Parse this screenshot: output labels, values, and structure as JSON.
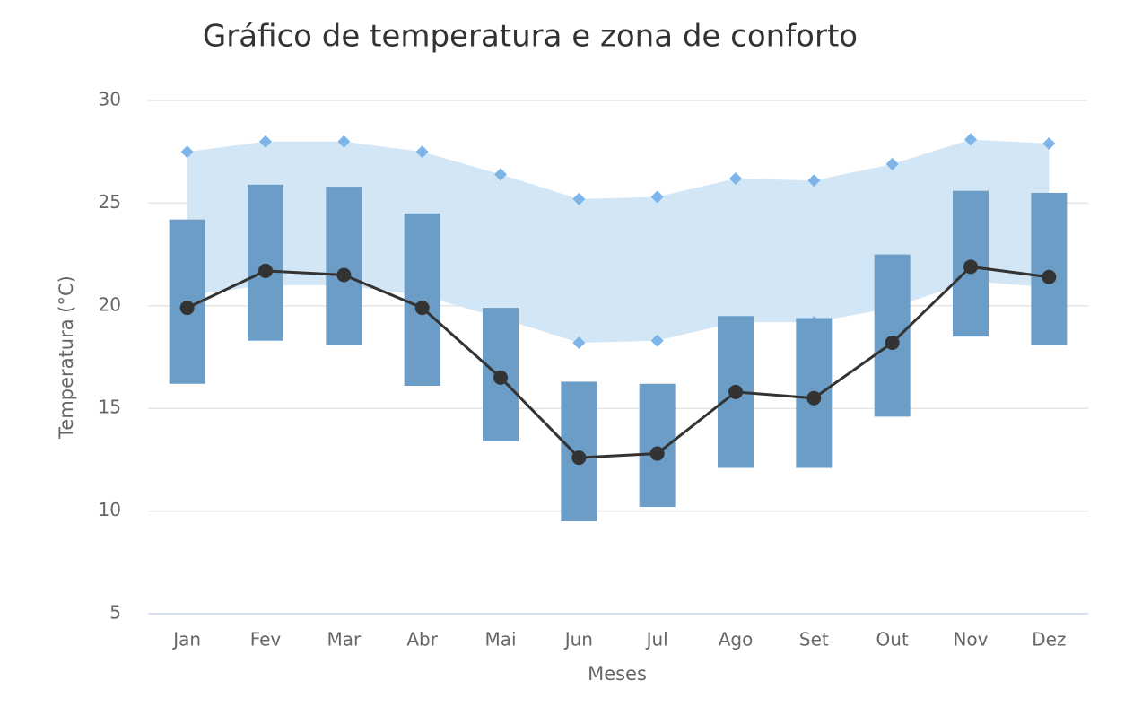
{
  "chart_data": {
    "type": "combo",
    "title": "Gráfico de temperatura e zona de conforto",
    "x_label": "Meses",
    "y_label": "Temperatura (°C)",
    "categories": [
      "Jan",
      "Fev",
      "Mar",
      "Abr",
      "Mai",
      "Jun",
      "Jul",
      "Ago",
      "Set",
      "Out",
      "Nov",
      "Dez"
    ],
    "ylim": [
      5,
      30
    ],
    "yticks": [
      5,
      10,
      15,
      20,
      25,
      30
    ],
    "grid": true,
    "series": [
      {
        "type": "arearange",
        "color": "#d3e6f6",
        "marker_color": "#7db5e9",
        "high": [
          27.5,
          28.0,
          28.0,
          27.5,
          26.4,
          25.2,
          25.3,
          26.2,
          26.1,
          26.9,
          28.1,
          27.9
        ],
        "low": [
          20.5,
          21.0,
          21.0,
          20.5,
          19.4,
          18.2,
          18.3,
          19.2,
          19.2,
          19.9,
          21.2,
          20.9
        ]
      },
      {
        "type": "columnrange",
        "color": "#6b9dc7",
        "high": [
          24.2,
          25.9,
          25.8,
          24.5,
          19.9,
          16.3,
          16.2,
          19.5,
          19.4,
          22.5,
          25.6,
          25.5
        ],
        "low": [
          16.2,
          18.3,
          18.1,
          16.1,
          13.4,
          9.5,
          10.2,
          12.1,
          12.1,
          14.6,
          18.5,
          18.1
        ]
      },
      {
        "type": "line",
        "color": "#333333",
        "values": [
          19.9,
          21.7,
          21.5,
          19.9,
          16.5,
          12.6,
          12.8,
          15.8,
          15.5,
          18.2,
          21.9,
          21.4
        ]
      }
    ]
  }
}
